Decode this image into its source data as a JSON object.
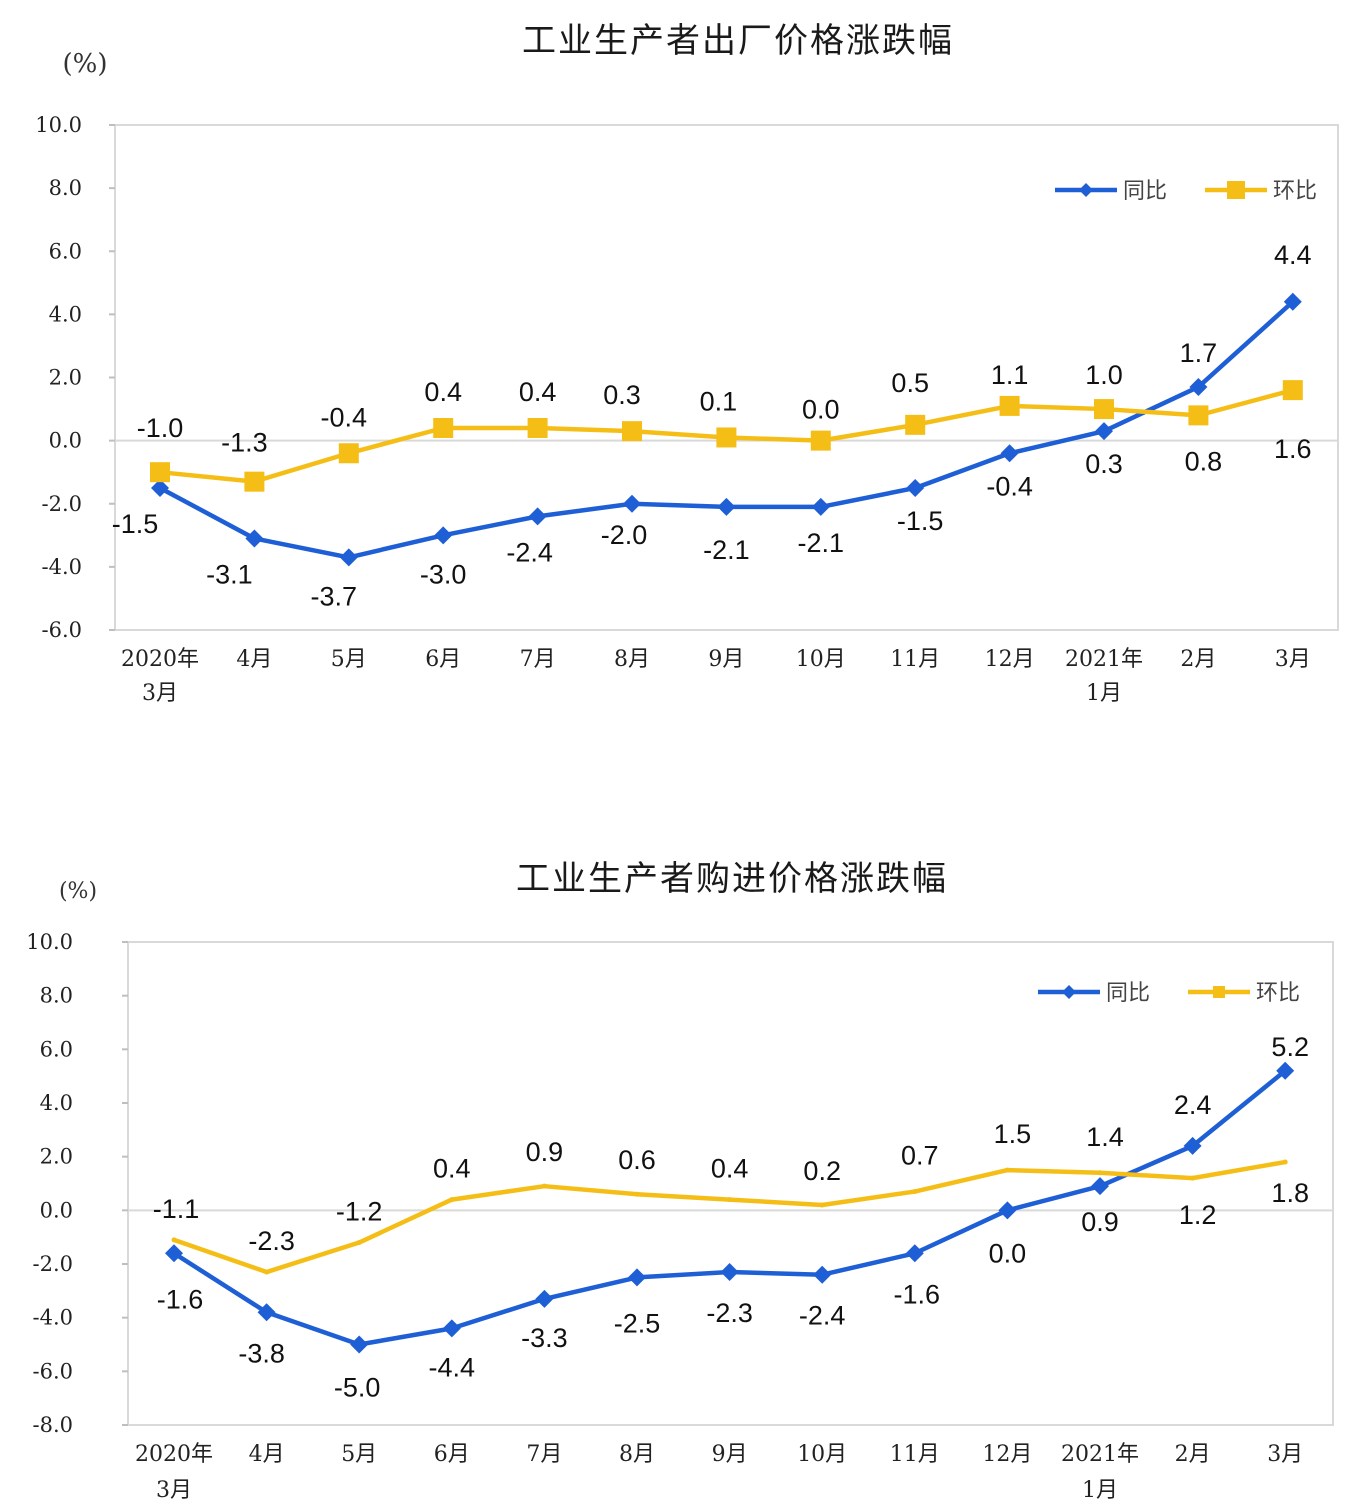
{
  "chart_data": [
    {
      "type": "line",
      "title": "工业生产者出厂价格涨跌幅",
      "ylabel": "(%)",
      "categories": [
        [
          "2020年",
          "3月"
        ],
        [
          "4月"
        ],
        [
          "5月"
        ],
        [
          "6月"
        ],
        [
          "7月"
        ],
        [
          "8月"
        ],
        [
          "9月"
        ],
        [
          "10月"
        ],
        [
          "11月"
        ],
        [
          "12月"
        ],
        [
          "2021年",
          "1月"
        ],
        [
          "2月"
        ],
        [
          "3月"
        ]
      ],
      "yticks": [
        "10.0",
        "8.0",
        "6.0",
        "4.0",
        "2.0",
        "0.0",
        "-2.0",
        "-4.0",
        "-6.0"
      ],
      "ylim": [
        -6,
        10
      ],
      "legend": "top-right",
      "grid": false,
      "series": [
        {
          "name": "同比",
          "color": "#1f5fd6",
          "marker": "diamond",
          "values": [
            -1.5,
            -3.1,
            -3.7,
            -3.0,
            -2.4,
            -2.0,
            -2.1,
            -2.1,
            -1.5,
            -0.4,
            0.3,
            1.7,
            4.4
          ],
          "labels": [
            "-1.5",
            "-3.1",
            "-3.7",
            "-3.0",
            "-2.4",
            "-2.0",
            "-2.1",
            "-2.1",
            "-1.5",
            "-0.4",
            "0.3",
            "1.7",
            "4.4"
          ]
        },
        {
          "name": "环比",
          "color": "#f5be17",
          "marker": "square",
          "values": [
            -1.0,
            -1.3,
            -0.4,
            0.4,
            0.4,
            0.3,
            0.1,
            0.0,
            0.5,
            1.1,
            1.0,
            0.8,
            1.6
          ],
          "labels": [
            "-1.0",
            "-1.3",
            "-0.4",
            "0.4",
            "0.4",
            "0.3",
            "0.1",
            "0.0",
            "0.5",
            "1.1",
            "1.0",
            "0.8",
            "1.6"
          ]
        }
      ]
    },
    {
      "type": "line",
      "title": "工业生产者购进价格涨跌幅",
      "ylabel": "(%)",
      "categories": [
        [
          "2020年",
          "3月"
        ],
        [
          "4月"
        ],
        [
          "5月"
        ],
        [
          "6月"
        ],
        [
          "7月"
        ],
        [
          "8月"
        ],
        [
          "9月"
        ],
        [
          "10月"
        ],
        [
          "11月"
        ],
        [
          "12月"
        ],
        [
          "2021年",
          "1月"
        ],
        [
          "2月"
        ],
        [
          "3月"
        ]
      ],
      "yticks": [
        "10.0",
        "8.0",
        "6.0",
        "4.0",
        "2.0",
        "0.0",
        "-2.0",
        "-4.0",
        "-6.0",
        "-8.0"
      ],
      "ylim": [
        -8,
        10
      ],
      "legend": "top-right",
      "grid": false,
      "series": [
        {
          "name": "同比",
          "color": "#1f5fd6",
          "marker": "diamond",
          "values": [
            -1.6,
            -3.8,
            -5.0,
            -4.4,
            -3.3,
            -2.5,
            -2.3,
            -2.4,
            -1.6,
            0.0,
            0.9,
            2.4,
            5.2
          ],
          "labels": [
            "-1.6",
            "-3.8",
            "-5.0",
            "-4.4",
            "-3.3",
            "-2.5",
            "-2.3",
            "-2.4",
            "-1.6",
            "0.0",
            "0.9",
            "2.4",
            "5.2"
          ]
        },
        {
          "name": "环比",
          "color": "#f5be17",
          "marker": "none",
          "values": [
            -1.1,
            -2.3,
            -1.2,
            0.4,
            0.9,
            0.6,
            0.4,
            0.2,
            0.7,
            1.5,
            1.4,
            1.2,
            1.8
          ],
          "labels": [
            "-1.1",
            "-2.3",
            "-1.2",
            "0.4",
            "0.9",
            "0.6",
            "0.4",
            "0.2",
            "0.7",
            "1.5",
            "1.4",
            "1.2",
            "1.8"
          ]
        }
      ]
    }
  ]
}
